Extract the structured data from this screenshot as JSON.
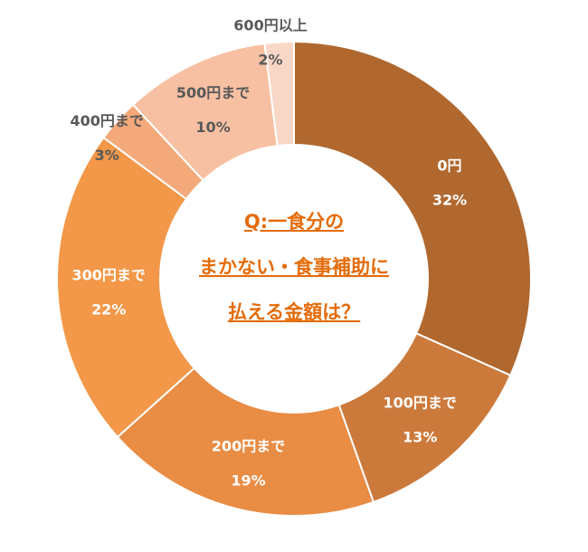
{
  "chart_data": {
    "type": "pie",
    "title_lines": [
      "Q:一食分の",
      "まかない・食事補助に",
      "払える金額は？"
    ],
    "categories": [
      "0円",
      "100円まで",
      "200円まで",
      "300円まで",
      "400円まで",
      "500円まで",
      "600円以上"
    ],
    "values": [
      32,
      13,
      19,
      22,
      3,
      10,
      2
    ],
    "value_labels": [
      "32%",
      "13%",
      "19%",
      "22%",
      "3%",
      "10%",
      "2%"
    ],
    "colors": [
      "#b0682f",
      "#cc7a3c",
      "#e98c44",
      "#f29848",
      "#f4a97a",
      "#f7c0a2",
      "#f9d7c7"
    ],
    "label_colors": [
      "#ffffff",
      "#ffffff",
      "#ffffff",
      "#ffffff",
      "#595959",
      "#595959",
      "#595959"
    ],
    "title_color": "#e46c0a",
    "start_angle_deg": 0,
    "direction": "clockwise",
    "legend": "none"
  }
}
